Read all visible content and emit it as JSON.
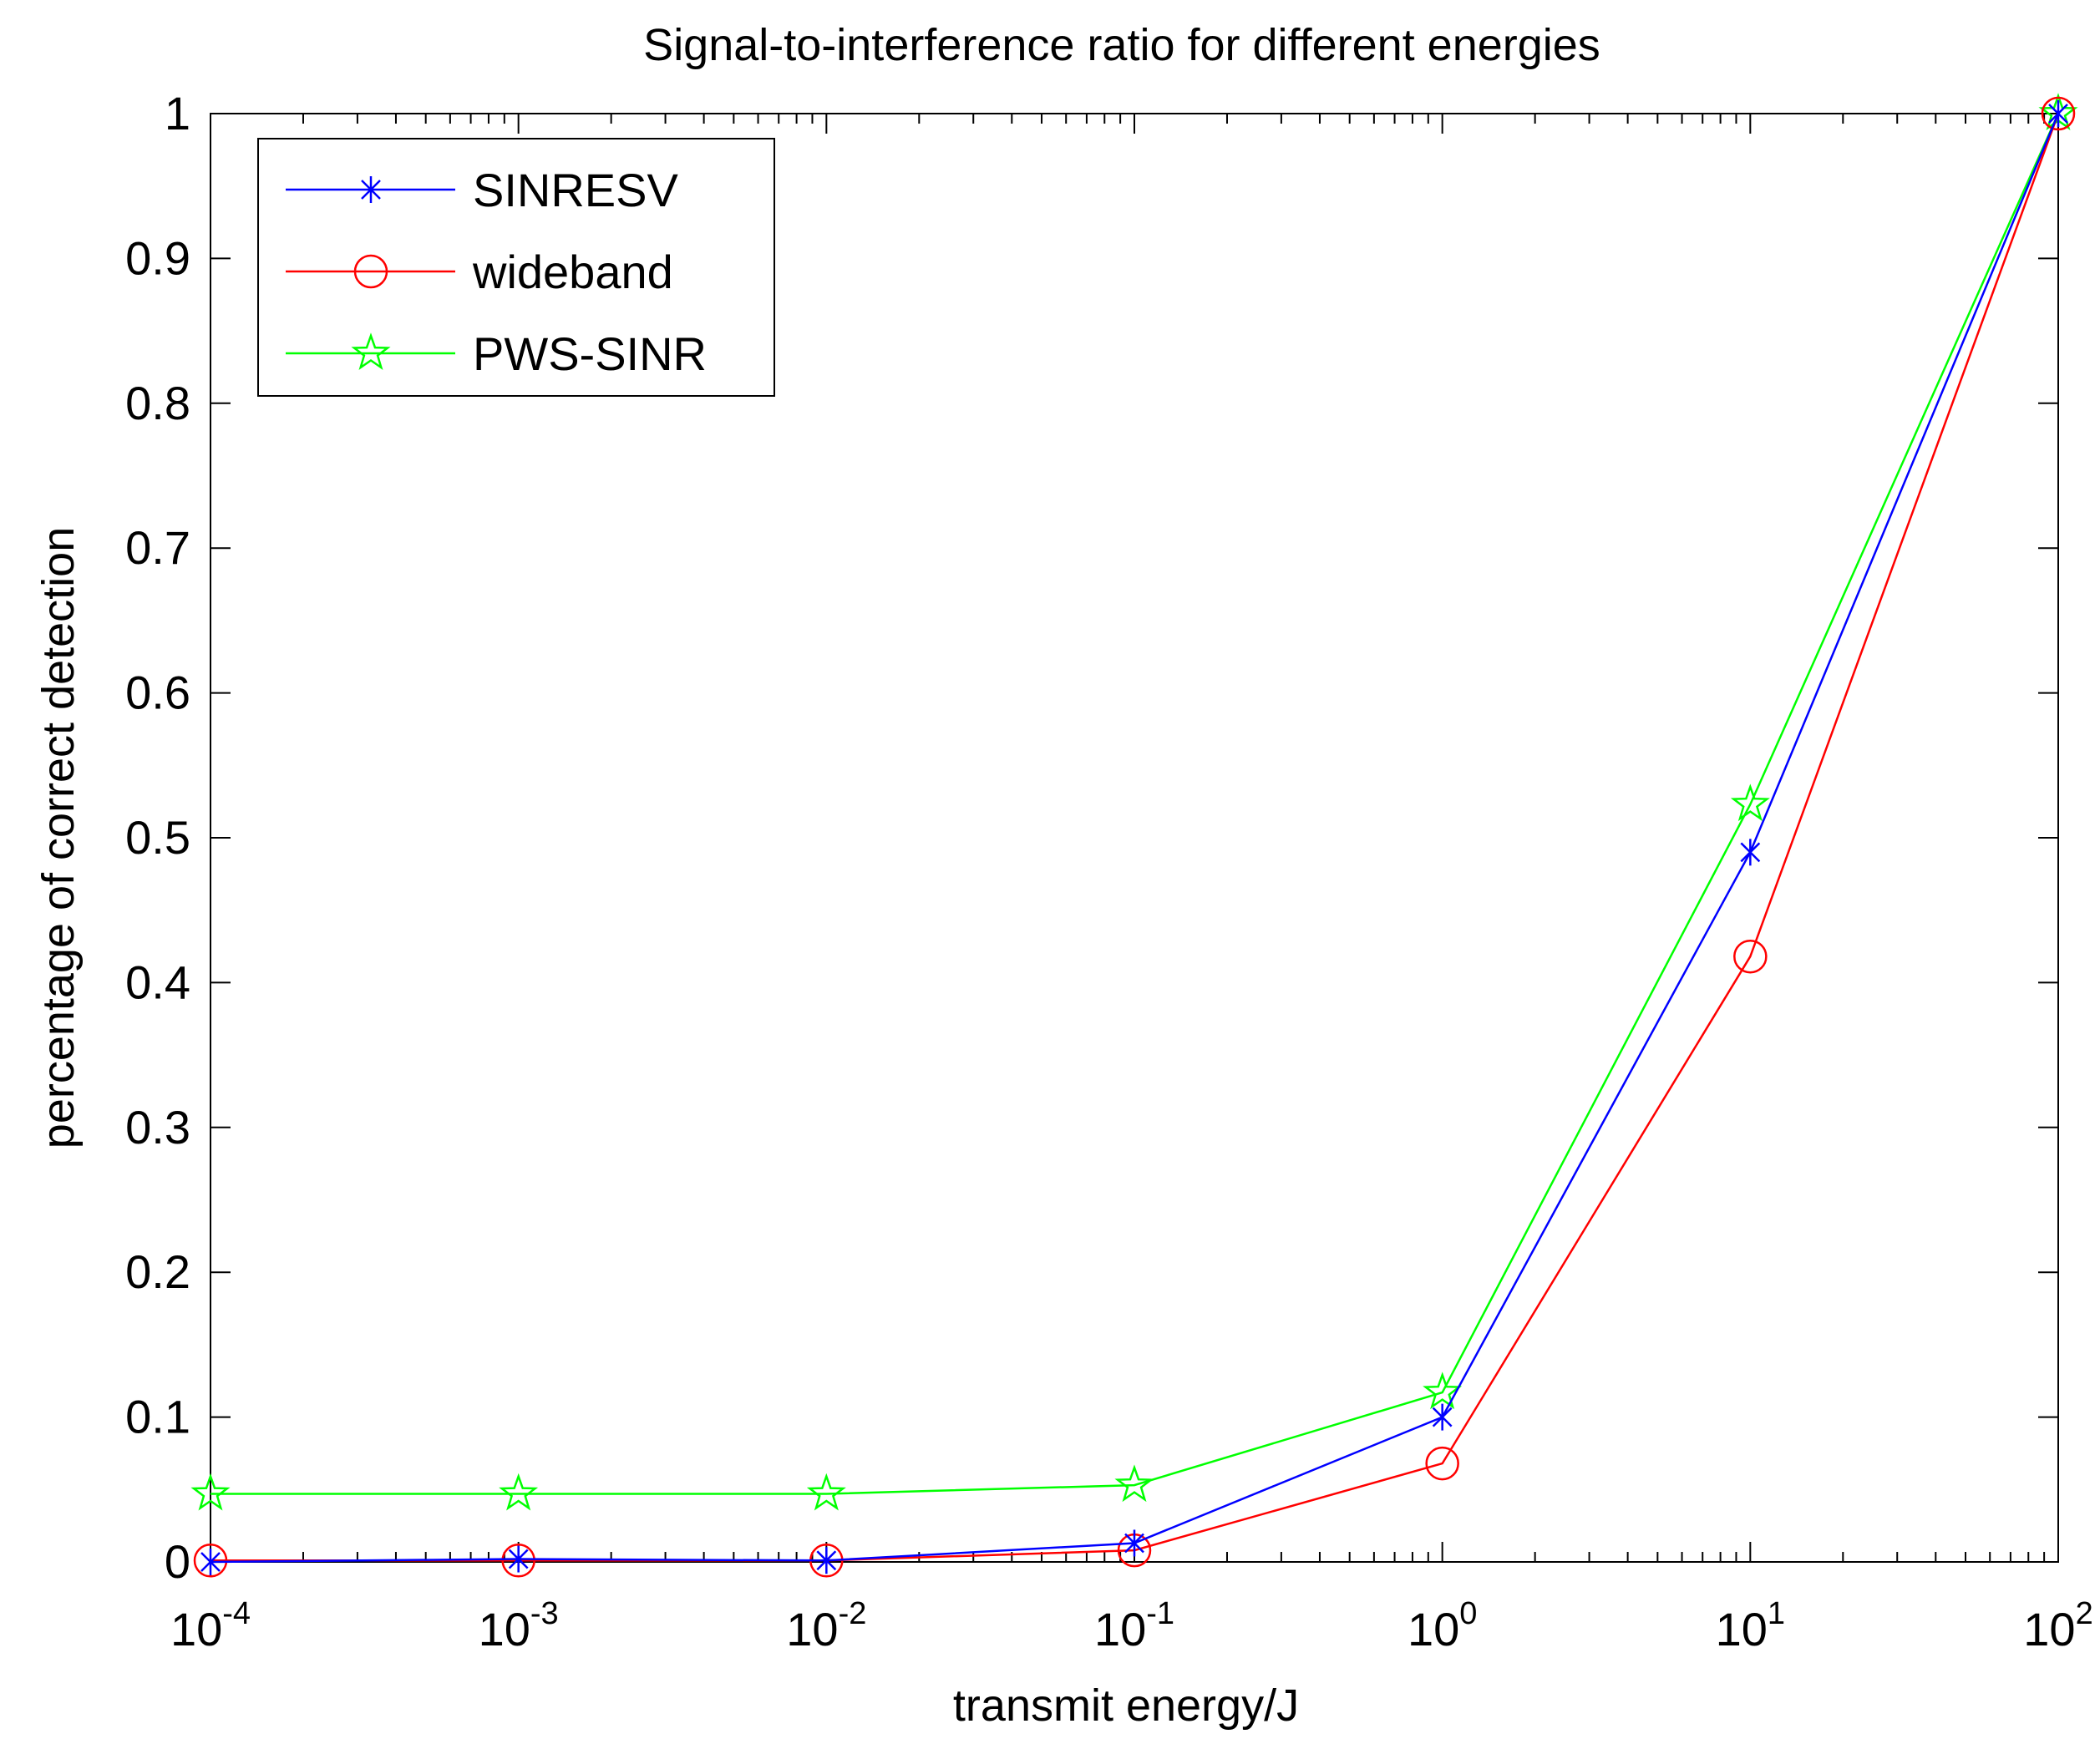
{
  "chart_data": {
    "type": "line",
    "title": "Signal-to-interference ratio for different energies",
    "xlabel": "transmit energy/J",
    "ylabel": "percentage of correct detection",
    "x_scale": "log",
    "x": [
      0.0001,
      0.001,
      0.01,
      0.1,
      1,
      10,
      100
    ],
    "x_ticks": [
      {
        "base": "10",
        "exp": "-4",
        "value": 0.0001
      },
      {
        "base": "10",
        "exp": "-3",
        "value": 0.001
      },
      {
        "base": "10",
        "exp": "-2",
        "value": 0.01
      },
      {
        "base": "10",
        "exp": "-1",
        "value": 0.1
      },
      {
        "base": "10",
        "exp": "0",
        "value": 1
      },
      {
        "base": "10",
        "exp": "1",
        "value": 10
      },
      {
        "base": "10",
        "exp": "2",
        "value": 100
      }
    ],
    "xlim": [
      0.0001,
      100
    ],
    "ylim": [
      0,
      1
    ],
    "y_ticks": [
      {
        "label": "0",
        "value": 0
      },
      {
        "label": "0.1",
        "value": 0.1
      },
      {
        "label": "0.2",
        "value": 0.2
      },
      {
        "label": "0.3",
        "value": 0.3
      },
      {
        "label": "0.4",
        "value": 0.4
      },
      {
        "label": "0.5",
        "value": 0.5
      },
      {
        "label": "0.6",
        "value": 0.6
      },
      {
        "label": "0.7",
        "value": 0.7
      },
      {
        "label": "0.8",
        "value": 0.8
      },
      {
        "label": "0.9",
        "value": 0.9
      },
      {
        "label": "1",
        "value": 1
      }
    ],
    "grid": false,
    "legend_position": "top-left",
    "series": [
      {
        "name": "SINRESV",
        "color": "#0000ff",
        "marker": "asterisk",
        "values": [
          0.0,
          0.002,
          0.001,
          0.013,
          0.1,
          0.49,
          1.0
        ]
      },
      {
        "name": "wideband",
        "color": "#ff0000",
        "marker": "circle",
        "values": [
          0.001,
          0.001,
          0.001,
          0.008,
          0.068,
          0.418,
          1.0
        ]
      },
      {
        "name": "PWS-SINR",
        "color": "#00ff00",
        "marker": "pentagram",
        "values": [
          0.047,
          0.047,
          0.047,
          0.053,
          0.117,
          0.523,
          1.0
        ]
      }
    ]
  }
}
